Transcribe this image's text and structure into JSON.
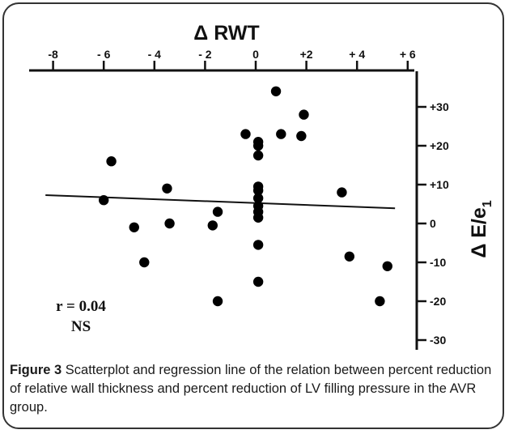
{
  "chart_data": {
    "type": "scatter",
    "title": "",
    "xlabel": "Δ RWT",
    "ylabel_main": "Δ E/e",
    "ylabel_sub": "1",
    "x_axis_position": "top",
    "y_axis_position": "right",
    "xlim": [
      -8,
      6
    ],
    "ylim": [
      -30,
      30
    ],
    "x_ticks": [
      -8,
      -6,
      -4,
      -2,
      0,
      2,
      4,
      6
    ],
    "x_tick_labels": [
      "-8",
      "- 6",
      "- 4",
      "- 2",
      "0",
      "+2",
      "+ 4",
      "+ 6"
    ],
    "y_ticks": [
      30,
      20,
      10,
      0,
      -10,
      -20,
      -30
    ],
    "y_tick_labels": [
      "+30",
      "+20",
      "+10",
      "0",
      "-10",
      "-20",
      "-30"
    ],
    "grid": false,
    "points": [
      {
        "x": 0.8,
        "y": 34
      },
      {
        "x": 1.9,
        "y": 28
      },
      {
        "x": -0.4,
        "y": 23
      },
      {
        "x": 1.0,
        "y": 23
      },
      {
        "x": 1.8,
        "y": 22.5
      },
      {
        "x": 0.1,
        "y": 21
      },
      {
        "x": 0.1,
        "y": 20
      },
      {
        "x": 0.1,
        "y": 17.5
      },
      {
        "x": -5.7,
        "y": 16
      },
      {
        "x": 0.1,
        "y": 9.5
      },
      {
        "x": 0.1,
        "y": 8.5
      },
      {
        "x": -3.5,
        "y": 9
      },
      {
        "x": 3.4,
        "y": 8
      },
      {
        "x": 0.1,
        "y": 6.5
      },
      {
        "x": -6.0,
        "y": 6
      },
      {
        "x": 0.1,
        "y": 4.5
      },
      {
        "x": 0.1,
        "y": 3
      },
      {
        "x": -1.5,
        "y": 3
      },
      {
        "x": 0.1,
        "y": 1.5
      },
      {
        "x": -4.8,
        "y": -1
      },
      {
        "x": -3.4,
        "y": 0
      },
      {
        "x": -1.7,
        "y": -0.5
      },
      {
        "x": 0.1,
        "y": -5.5
      },
      {
        "x": 3.7,
        "y": -8.5
      },
      {
        "x": -4.4,
        "y": -10
      },
      {
        "x": 5.2,
        "y": -11
      },
      {
        "x": 0.1,
        "y": -15
      },
      {
        "x": -1.5,
        "y": -20
      },
      {
        "x": 4.9,
        "y": -20
      }
    ],
    "regression_line": {
      "x": [
        -8.3,
        5.5
      ],
      "y": [
        7.3,
        3.9
      ]
    },
    "annotations": [
      "r = 0.04",
      "NS"
    ]
  },
  "caption": {
    "label": "Figure 3",
    "text": " Scatterplot and regression line of the relation between percent reduction of relative wall thickness and percent reduction of LV filling pressure in the AVR group."
  }
}
